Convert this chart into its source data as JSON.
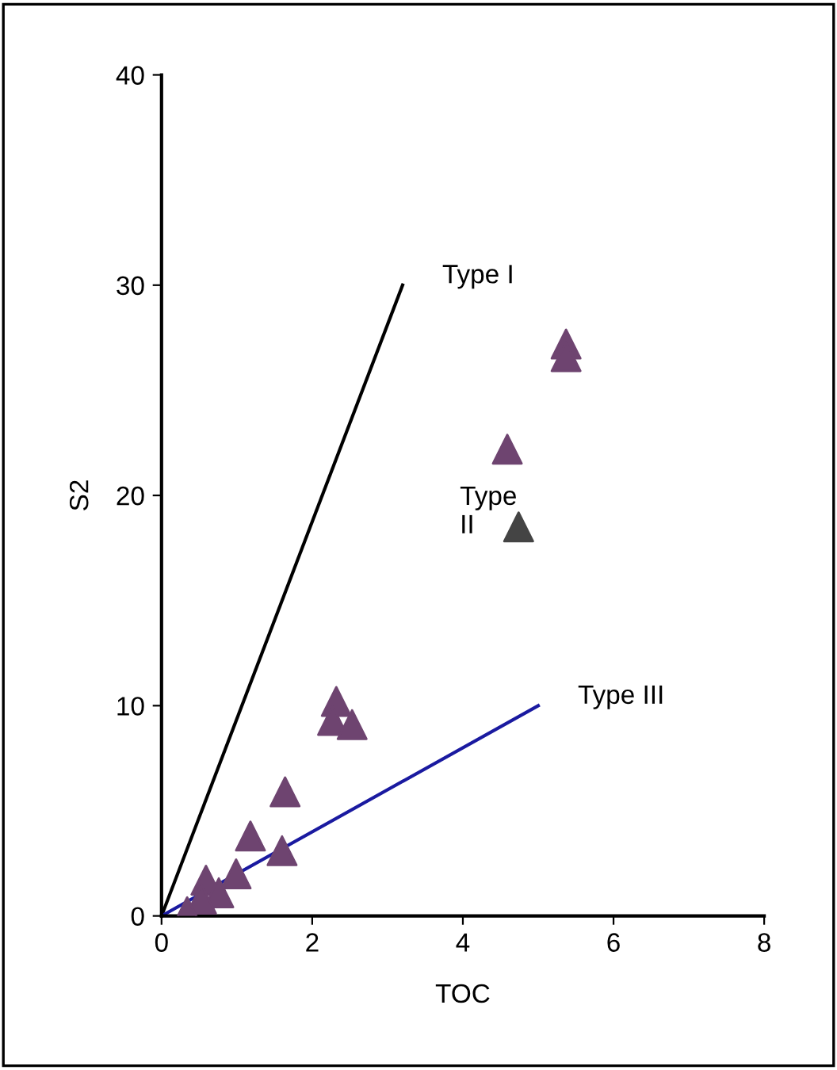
{
  "chart_data": {
    "type": "scatter",
    "xlabel": "TOC",
    "ylabel": "S2",
    "xlim": [
      0,
      8
    ],
    "ylim": [
      0,
      40
    ],
    "xticks": [
      0,
      2,
      4,
      6,
      8
    ],
    "yticks": [
      0,
      10,
      20,
      30,
      40
    ],
    "grid": false,
    "legend": false,
    "series": [
      {
        "type": "line",
        "name": "Type I",
        "color": "#000000",
        "x": [
          0,
          3.2
        ],
        "values": [
          0,
          30
        ],
        "marker": "none"
      },
      {
        "type": "line",
        "name": "Type III",
        "color": "#1a1aa0",
        "x": [
          0,
          5
        ],
        "values": [
          0,
          10
        ],
        "marker": "none"
      },
      {
        "color": "#6e4470",
        "marker": "triangle",
        "x": [
          5.37,
          5.37,
          4.59,
          2.32,
          2.27,
          2.53,
          1.64,
          1.18,
          1.6,
          0.99,
          0.59,
          0.76,
          0.53,
          0.34
        ],
        "values": [
          27.2,
          26.6,
          22.2,
          10.2,
          9.3,
          9.1,
          5.9,
          3.8,
          3.1,
          2.0,
          1.7,
          1.1,
          0.8,
          0.2
        ]
      },
      {
        "color": "#444444",
        "marker": "triangle",
        "x": [
          4.74
        ],
        "values": [
          18.5
        ]
      }
    ],
    "annotations": [
      "Type\nII"
    ]
  }
}
